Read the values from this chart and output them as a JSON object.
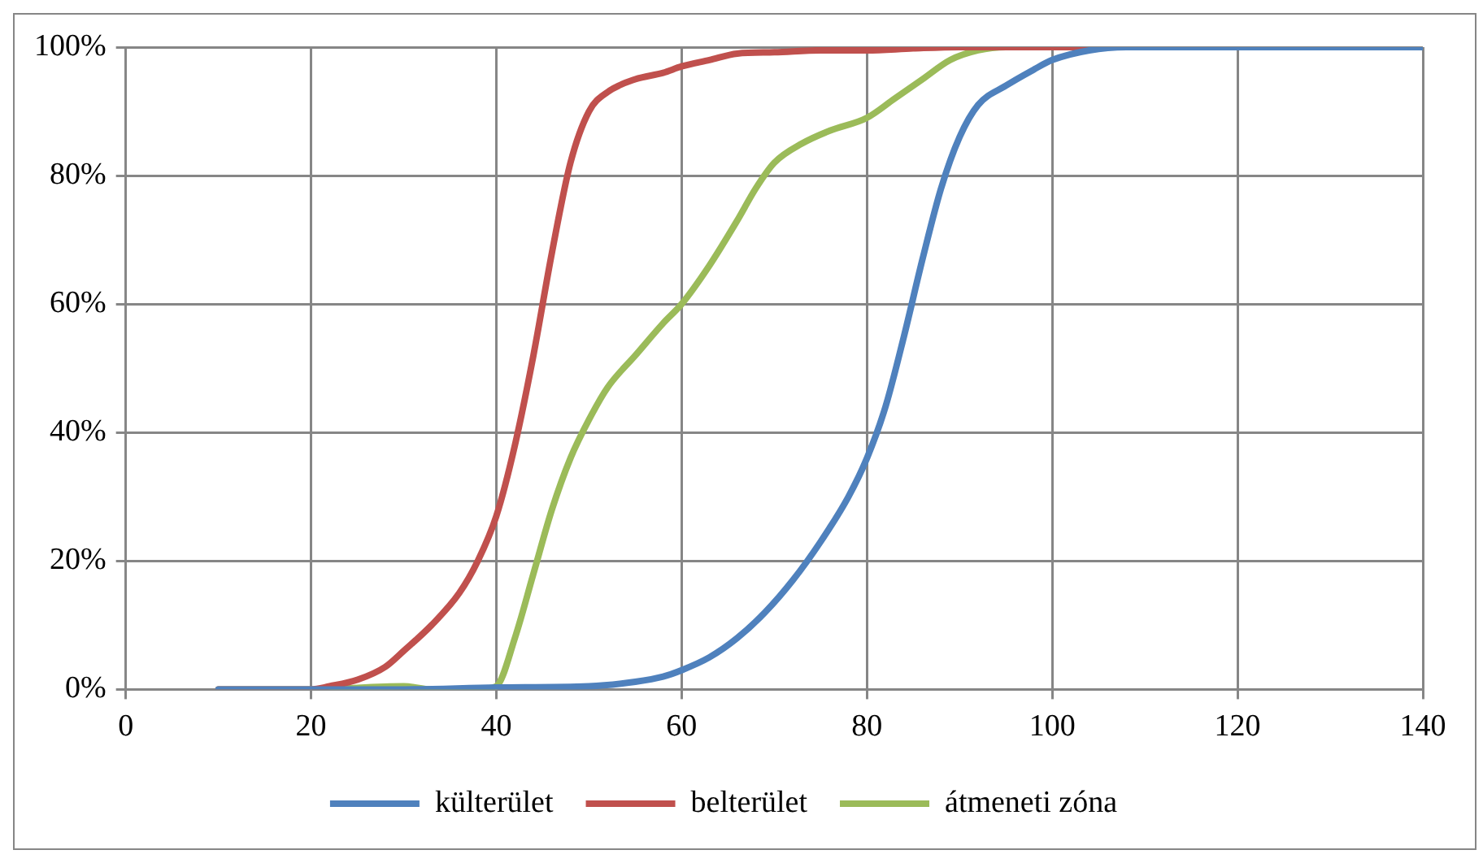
{
  "chart_data": {
    "type": "line",
    "xlim": [
      0,
      140
    ],
    "xticks": [
      0,
      20,
      40,
      60,
      80,
      100,
      120,
      140
    ],
    "ylim": [
      0,
      100
    ],
    "yticks": [
      {
        "value": 0,
        "label": "0%"
      },
      {
        "value": 20,
        "label": "20%"
      },
      {
        "value": 40,
        "label": "40%"
      },
      {
        "value": 60,
        "label": "60%"
      },
      {
        "value": 80,
        "label": "80%"
      },
      {
        "value": 100,
        "label": "100%"
      }
    ],
    "grid": true,
    "legend": "bottom",
    "marker": "none",
    "line_style": "solid",
    "series": [
      {
        "name": "külterület",
        "color": "#4f81bd",
        "x": [
          10,
          30,
          40,
          50,
          55,
          58,
          60,
          63,
          66,
          69,
          72,
          75,
          78,
          80,
          82,
          84,
          86,
          88,
          90,
          92,
          95,
          98,
          100,
          104,
          108,
          140
        ],
        "values": [
          0,
          0,
          0.3,
          0.5,
          1.2,
          2,
          3,
          5,
          8,
          12,
          17,
          23,
          30,
          36,
          44,
          55,
          67,
          78,
          86,
          91,
          94,
          96.5,
          98,
          99.5,
          100,
          100
        ]
      },
      {
        "name": "belterület",
        "color": "#c0504d",
        "x": [
          10,
          20,
          22,
          25,
          28,
          30,
          33,
          36,
          38,
          40,
          42,
          44,
          46,
          48,
          50,
          52,
          55,
          58,
          60,
          63,
          66,
          70,
          75,
          80,
          85,
          90,
          140
        ],
        "values": [
          0,
          0,
          0.5,
          1.5,
          3.5,
          6,
          10,
          15,
          20,
          27,
          38,
          52,
          68,
          82,
          90,
          93,
          95,
          96,
          97,
          98,
          99,
          99.2,
          99.5,
          99.5,
          99.8,
          100,
          100
        ]
      },
      {
        "name": "átmeneti zóna",
        "color": "#9bbb59",
        "x": [
          10,
          20,
          30,
          33,
          38,
          40,
          42,
          44,
          46,
          48,
          50,
          52,
          55,
          58,
          60,
          63,
          66,
          68,
          70,
          73,
          76,
          80,
          83,
          86,
          89,
          92,
          95,
          140
        ],
        "values": [
          0,
          0,
          0.5,
          0,
          0,
          0.5,
          8,
          18,
          28,
          36,
          42,
          47,
          52,
          57,
          60,
          66,
          73,
          78,
          82,
          85,
          87,
          89,
          92,
          95,
          98,
          99.5,
          100,
          100
        ]
      }
    ]
  }
}
